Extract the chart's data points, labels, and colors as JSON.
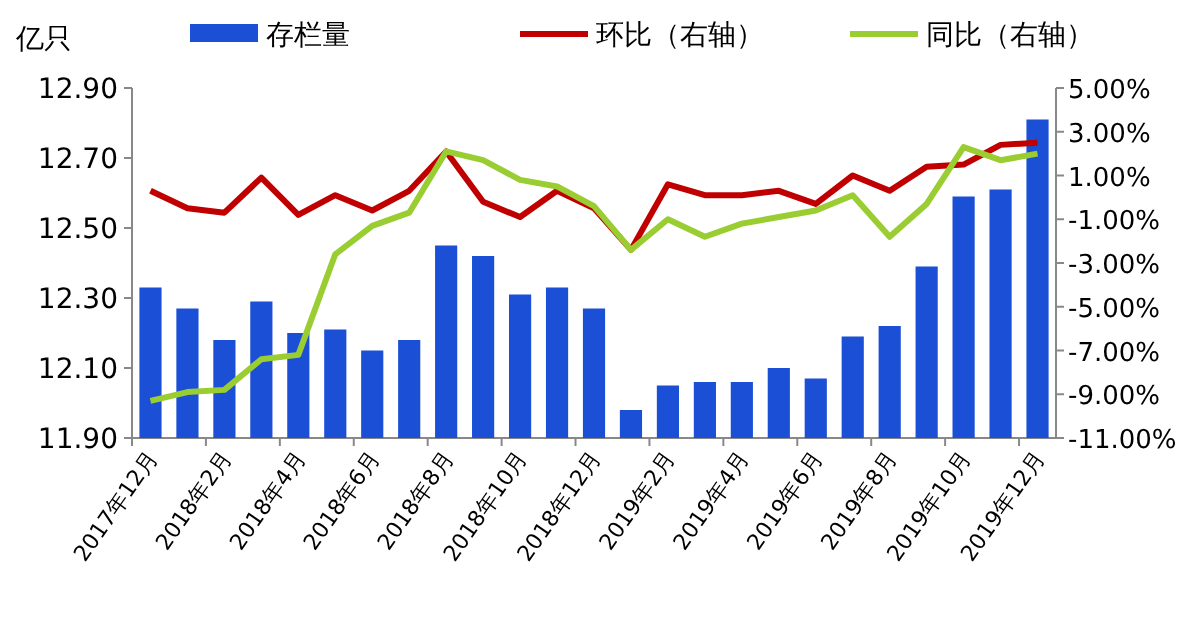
{
  "chart_data": {
    "type": "bar",
    "ylabel": "亿只",
    "categories": [
      "2017年12月",
      null,
      "2018年2月",
      null,
      "2018年4月",
      null,
      "2018年6月",
      null,
      "2018年8月",
      null,
      "2018年10月",
      null,
      "2018年12月",
      null,
      "2019年2月",
      null,
      "2019年4月",
      null,
      "2019年6月",
      null,
      "2019年8月",
      null,
      "2019年10月",
      null,
      "2019年12月"
    ],
    "series": [
      {
        "name": "存栏量",
        "color": "#1a4fd6",
        "values": [
          12.33,
          12.27,
          12.18,
          12.29,
          12.2,
          12.21,
          12.15,
          12.18,
          12.45,
          12.42,
          12.31,
          12.33,
          12.27,
          11.98,
          12.05,
          12.06,
          12.06,
          12.1,
          12.07,
          12.19,
          12.22,
          12.39,
          12.59,
          12.61,
          12.81
        ]
      },
      {
        "name": "环比（右轴）",
        "type": "line",
        "axis": "y2",
        "color": "#c00000",
        "values": [
          0.3,
          -0.5,
          -0.7,
          0.9,
          -0.8,
          0.1,
          -0.6,
          0.3,
          2.1,
          -0.2,
          -0.9,
          0.3,
          -0.5,
          -2.4,
          0.6,
          0.1,
          0.1,
          0.3,
          -0.3,
          1.0,
          0.3,
          1.4,
          1.5,
          2.4,
          2.5
        ]
      },
      {
        "name": "同比（右轴）",
        "type": "line",
        "axis": "y2",
        "color": "#9acd32",
        "values": [
          -9.3,
          -8.9,
          -8.8,
          -7.4,
          -7.2,
          -2.6,
          -1.3,
          -0.7,
          2.1,
          1.7,
          0.8,
          0.5,
          -0.4,
          -2.4,
          -1.0,
          -1.8,
          -1.2,
          -0.9,
          -0.6,
          0.1,
          -1.8,
          -0.3,
          2.3,
          1.7,
          2.0
        ]
      }
    ],
    "ylim": [
      11.9,
      12.9
    ],
    "yticks": [
      {
        "value": 11.9,
        "label": "11.90"
      },
      {
        "value": 12.1,
        "label": "12.10"
      },
      {
        "value": 12.3,
        "label": "12.30"
      },
      {
        "value": 12.5,
        "label": "12.50"
      },
      {
        "value": 12.7,
        "label": "12.70"
      },
      {
        "value": 12.9,
        "label": "12.90"
      }
    ],
    "y2lim": [
      -11,
      5
    ],
    "y2ticks": [
      {
        "value": -11,
        "label": "-11.00%"
      },
      {
        "value": -9,
        "label": "-9.00%"
      },
      {
        "value": -7,
        "label": "-7.00%"
      },
      {
        "value": -5,
        "label": "-5.00%"
      },
      {
        "value": -3,
        "label": "-3.00%"
      },
      {
        "value": -1,
        "label": "-1.00%"
      },
      {
        "value": 1,
        "label": "1.00%"
      },
      {
        "value": 3,
        "label": "3.00%"
      },
      {
        "value": 5,
        "label": "5.00%"
      }
    ],
    "legend": "top",
    "grid": false
  }
}
